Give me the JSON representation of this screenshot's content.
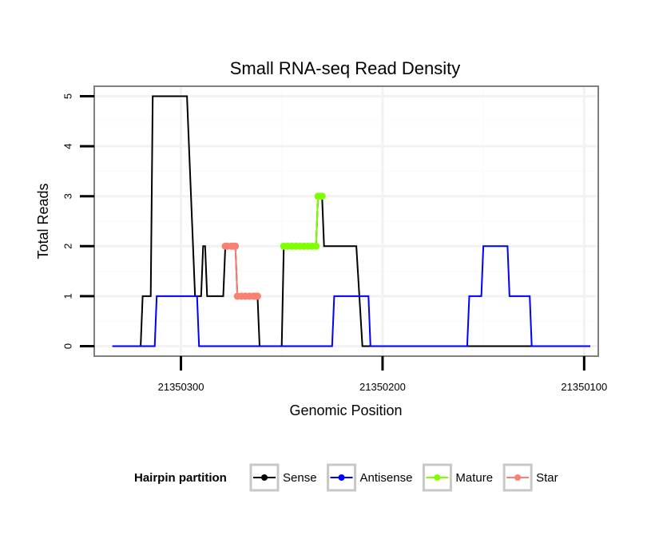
{
  "chart_data": {
    "type": "line",
    "title": "Small RNA-seq Read Density",
    "xlabel": "Genomic Position",
    "ylabel": "Total Reads",
    "x_reversed": true,
    "xlim": [
      21350343,
      21350093
    ],
    "ylim": [
      -0.2,
      5.2
    ],
    "x_ticks": [
      21350300,
      21350200,
      21350100
    ],
    "x_tick_labels": [
      "21350300",
      "21350200",
      "21350100"
    ],
    "y_ticks": [
      0,
      1,
      2,
      3,
      4,
      5
    ],
    "y_tick_labels": [
      "0",
      "1",
      "2",
      "3",
      "4",
      "5"
    ],
    "grid": true,
    "legend": {
      "title": "Hairpin partition",
      "placement": "bottom",
      "entries": [
        "Sense",
        "Antisense",
        "Mature",
        "Star"
      ]
    },
    "series": [
      {
        "name": "Sense",
        "color": "#000000",
        "marker": "line",
        "points": [
          [
            21350334,
            0
          ],
          [
            21350320,
            0
          ],
          [
            21350319,
            1
          ],
          [
            21350315,
            1
          ],
          [
            21350314,
            5
          ],
          [
            21350297,
            5
          ],
          [
            21350296,
            4
          ],
          [
            21350293,
            1
          ],
          [
            21350290,
            1
          ],
          [
            21350289,
            2
          ],
          [
            21350288,
            2
          ],
          [
            21350287,
            1
          ],
          [
            21350279,
            1
          ],
          [
            21350278,
            2
          ],
          [
            21350273,
            2
          ],
          [
            21350272,
            1
          ],
          [
            21350262,
            1
          ],
          [
            21350261,
            0
          ],
          [
            21350250,
            0
          ],
          [
            21350249,
            2
          ],
          [
            21350233,
            2
          ],
          [
            21350232,
            3
          ],
          [
            21350230,
            3
          ],
          [
            21350229,
            2
          ],
          [
            21350213,
            2
          ],
          [
            21350210,
            0
          ],
          [
            21350165,
            0
          ],
          [
            21350097,
            0
          ]
        ]
      },
      {
        "name": "Antisense",
        "color": "#0000ff",
        "marker": "line",
        "points": [
          [
            21350334,
            0
          ],
          [
            21350313,
            0
          ],
          [
            21350312,
            1
          ],
          [
            21350292,
            1
          ],
          [
            21350291,
            0
          ],
          [
            21350225,
            0
          ],
          [
            21350224,
            1
          ],
          [
            21350207,
            1
          ],
          [
            21350206,
            0
          ],
          [
            21350158,
            0
          ],
          [
            21350157,
            1
          ],
          [
            21350151,
            1
          ],
          [
            21350150,
            2
          ],
          [
            21350138,
            2
          ],
          [
            21350137,
            1
          ],
          [
            21350127,
            1
          ],
          [
            21350126,
            0
          ],
          [
            21350097,
            0
          ]
        ]
      },
      {
        "name": "Mature",
        "color": "#7fff00",
        "marker": "point",
        "points": [
          [
            21350249,
            2
          ],
          [
            21350247,
            2
          ],
          [
            21350245,
            2
          ],
          [
            21350243,
            2
          ],
          [
            21350241,
            2
          ],
          [
            21350239,
            2
          ],
          [
            21350237,
            2
          ],
          [
            21350235,
            2
          ],
          [
            21350233,
            2
          ],
          [
            21350232,
            3
          ],
          [
            21350231,
            3
          ],
          [
            21350230,
            3
          ]
        ]
      },
      {
        "name": "Star",
        "color": "#fa8072",
        "marker": "point",
        "points": [
          [
            21350278,
            2
          ],
          [
            21350277,
            2
          ],
          [
            21350275,
            2
          ],
          [
            21350274,
            2
          ],
          [
            21350273,
            2
          ],
          [
            21350272,
            1
          ],
          [
            21350270,
            1
          ],
          [
            21350268,
            1
          ],
          [
            21350266,
            1
          ],
          [
            21350264,
            1
          ],
          [
            21350263,
            1
          ],
          [
            21350262,
            1
          ]
        ]
      }
    ]
  }
}
